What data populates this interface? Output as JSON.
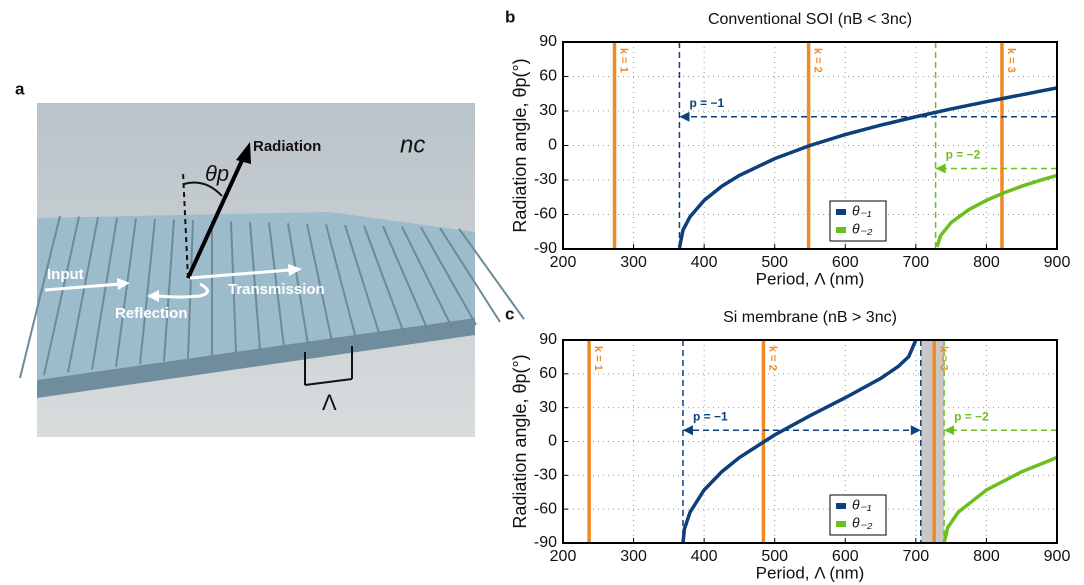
{
  "panel_labels": [
    "a",
    "b",
    "c"
  ],
  "illustration": {
    "medium": "nc",
    "angle": "θp",
    "radiation": "Radiation",
    "input": "Input",
    "reflection": "Reflection",
    "transmission": "Transmission",
    "period": "Λ"
  },
  "chart_data": [
    {
      "type": "line",
      "title": "Conventional SOI (nB < 3nc)",
      "x_label": "Period, Λ (nm)",
      "y_label": "Radiation angle, θp(°)",
      "xlim": [
        200,
        900
      ],
      "xticks": [
        200,
        300,
        400,
        500,
        600,
        700,
        800,
        900
      ],
      "ylim": [
        -90,
        90
      ],
      "yticks": [
        -90,
        -60,
        -30,
        0,
        30,
        60,
        90
      ],
      "grid": true,
      "legend": "lower center",
      "series": [
        {
          "name": "θ₋₁",
          "color": "#0d3f7a",
          "x": [
            365,
            370,
            380,
            400,
            425,
            450,
            500,
            550,
            600,
            650,
            700,
            750,
            800,
            850,
            900
          ],
          "values": [
            -89,
            -73.6,
            -61.9,
            -47.7,
            -35.4,
            -26.0,
            -11.4,
            0.0,
            9.5,
            17.7,
            25.0,
            31.8,
            38.1,
            44.1,
            50.1
          ]
        },
        {
          "name": "θ₋₂",
          "color": "#6cbf1f",
          "x": [
            730,
            735,
            750,
            775,
            800,
            825,
            850,
            875,
            900
          ],
          "values": [
            -88,
            -78.4,
            -67.0,
            -55.8,
            -47.7,
            -41.1,
            -35.4,
            -30.5,
            -26.0
          ]
        }
      ],
      "orders": {
        "color": "#f08a24",
        "x": [
          273,
          548,
          822
        ],
        "labels": [
          "k = 1",
          "k = 2",
          "k = 3"
        ]
      },
      "cutoffs": [
        {
          "x": 365,
          "color": "#0d3f7a"
        },
        {
          "x": 728,
          "color": "#6cbf1f"
        }
      ],
      "arrows": [
        {
          "label": "p = −1",
          "color": "#0d3f7a",
          "y": 25,
          "x": [
            900,
            365
          ],
          "double": false
        },
        {
          "label": "p = −2",
          "color": "#6cbf1f",
          "y": -20,
          "x": [
            900,
            728
          ],
          "double": false
        }
      ]
    },
    {
      "type": "line",
      "title": "Si membrane (nB > 3nc)",
      "x_label": "Period, Λ (nm)",
      "y_label": "Radiation angle, θp(°)",
      "xlim": [
        200,
        900
      ],
      "xticks": [
        200,
        300,
        400,
        500,
        600,
        700,
        800,
        900
      ],
      "ylim": [
        -90,
        90
      ],
      "yticks": [
        -90,
        -60,
        -30,
        0,
        30,
        60,
        90
      ],
      "grid": true,
      "legend": "lower center",
      "series": [
        {
          "name": "θ₋₁",
          "color": "#0d3f7a",
          "x": [
            370,
            372,
            380,
            400,
            425,
            450,
            500,
            550,
            600,
            650,
            675,
            690,
            700
          ],
          "values": [
            -90,
            -77.7,
            -62.7,
            -43.0,
            -26.8,
            -14.2,
            5.9,
            22.9,
            38.8,
            55.9,
            66.5,
            75.4,
            90
          ]
        },
        {
          "name": "θ₋₂",
          "color": "#6cbf1f",
          "x": [
            740,
            745,
            760,
            800,
            850,
            900
          ],
          "values": [
            -90,
            -76.4,
            -62.7,
            -43.0,
            -26.8,
            -14.2
          ]
        }
      ],
      "band": [
        707,
        740
      ],
      "orders": {
        "color": "#f08a24",
        "x": [
          237,
          484,
          726
        ],
        "labels": [
          "k = 1",
          "k = 2",
          "k = 3"
        ]
      },
      "cutoffs": [
        {
          "x": 370,
          "color": "#0d3f7a"
        },
        {
          "x": 707,
          "color": "#0d3f7a"
        },
        {
          "x": 740,
          "color": "#6cbf1f"
        }
      ],
      "arrows": [
        {
          "label": "p = −1",
          "color": "#0d3f7a",
          "y": 10,
          "x": [
            370,
            707
          ],
          "double": true
        },
        {
          "label": "p = −2",
          "color": "#6cbf1f",
          "y": 10,
          "x": [
            900,
            740
          ],
          "double": false
        }
      ]
    }
  ]
}
